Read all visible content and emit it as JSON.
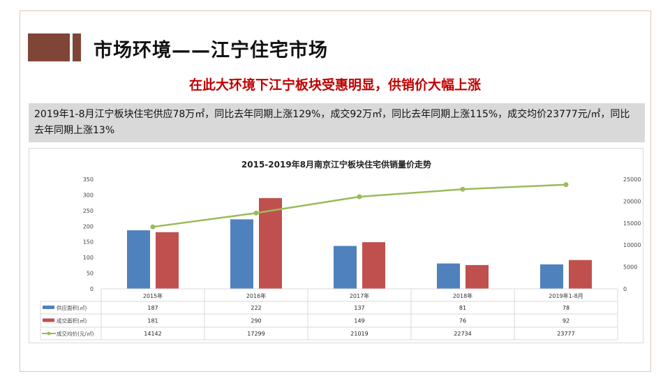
{
  "title": "市场环境——江宁住宅市场",
  "subtitle": "在此大环境下江宁板块受惠明显，供销价大幅上涨",
  "summary": "2019年1-8月江宁板块住宅供应78万㎡，同比去年同期上涨129%，成交92万㎡，同比去年同期上涨115%，成交均价23777元/㎡，同比去年同期上涨13%",
  "colors": {
    "accent": "#7f4537",
    "headline": "#c00000",
    "supply": "#4f81bd",
    "deal": "#c0504d",
    "price": "#9bbb59"
  },
  "chart_data": {
    "type": "bar+line",
    "title": "2015-2019年8月南京江宁板块住宅供销量价走势",
    "categories": [
      "2015年",
      "2016年",
      "2017年",
      "2018年",
      "2019年1-8月"
    ],
    "series": [
      {
        "name": "供应面积(㎡)",
        "type": "bar",
        "axis": "left",
        "values": [
          187,
          222,
          137,
          81,
          78
        ]
      },
      {
        "name": "成交面积(㎡)",
        "type": "bar",
        "axis": "left",
        "values": [
          181,
          290,
          149,
          76,
          92
        ]
      },
      {
        "name": "成交均价(元/㎡)",
        "type": "line",
        "axis": "right",
        "values": [
          14142,
          17299,
          21019,
          22734,
          23777
        ]
      }
    ],
    "ylim_left": [
      0,
      350
    ],
    "yticks_left": [
      0,
      50,
      100,
      150,
      200,
      250,
      300,
      350
    ],
    "ylim_right": [
      0,
      25000
    ],
    "yticks_right": [
      0,
      5000,
      10000,
      15000,
      20000,
      25000
    ],
    "legend": "data-table",
    "grid": false
  }
}
